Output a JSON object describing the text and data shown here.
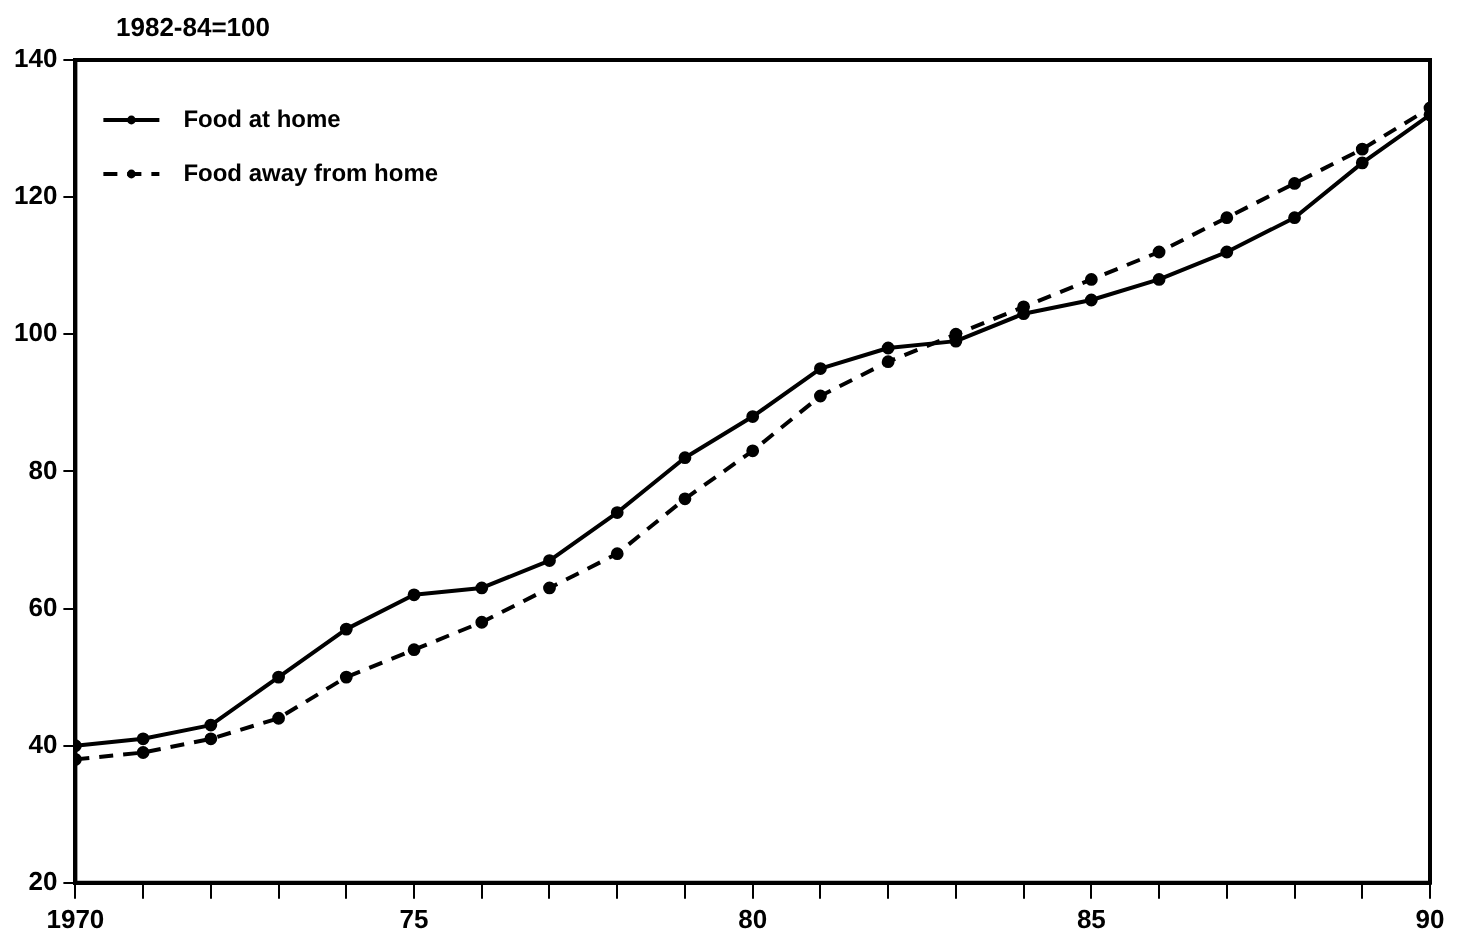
{
  "chart_data": {
    "type": "line",
    "ylabel": "1982-84=100",
    "x": [
      1970,
      1971,
      1972,
      1973,
      1974,
      1975,
      1976,
      1977,
      1978,
      1979,
      1980,
      1981,
      1982,
      1983,
      1984,
      1985,
      1986,
      1987,
      1988,
      1989,
      1990
    ],
    "series": [
      {
        "name": "Food at home",
        "color": "#000000",
        "line_style": "solid",
        "values": [
          40,
          41,
          43,
          50,
          57,
          62,
          63,
          67,
          74,
          82,
          88,
          95,
          98,
          99,
          103,
          105,
          108,
          112,
          117,
          125,
          132
        ]
      },
      {
        "name": "Food away from home",
        "color": "#000000",
        "line_style": "dashed",
        "values": [
          38,
          39,
          41,
          44,
          50,
          54,
          58,
          63,
          68,
          76,
          83,
          91,
          96,
          100,
          104,
          108,
          112,
          117,
          122,
          127,
          133
        ]
      }
    ],
    "xlim": [
      1970,
      1990
    ],
    "xticks": [
      {
        "value": 1970,
        "label": "1970"
      },
      {
        "value": 1971,
        "label": null
      },
      {
        "value": 1972,
        "label": null
      },
      {
        "value": 1973,
        "label": null
      },
      {
        "value": 1974,
        "label": null
      },
      {
        "value": 1975,
        "label": "75"
      },
      {
        "value": 1976,
        "label": null
      },
      {
        "value": 1977,
        "label": null
      },
      {
        "value": 1978,
        "label": null
      },
      {
        "value": 1979,
        "label": null
      },
      {
        "value": 1980,
        "label": "80"
      },
      {
        "value": 1981,
        "label": null
      },
      {
        "value": 1982,
        "label": null
      },
      {
        "value": 1983,
        "label": null
      },
      {
        "value": 1984,
        "label": null
      },
      {
        "value": 1985,
        "label": "85"
      },
      {
        "value": 1986,
        "label": null
      },
      {
        "value": 1987,
        "label": null
      },
      {
        "value": 1988,
        "label": null
      },
      {
        "value": 1989,
        "label": null
      },
      {
        "value": 1990,
        "label": "90"
      }
    ],
    "ylim": [
      20,
      140
    ],
    "yticks": [
      20,
      40,
      60,
      80,
      100,
      120,
      140
    ],
    "grid": false,
    "legend": "top left",
    "marker": "circle"
  }
}
